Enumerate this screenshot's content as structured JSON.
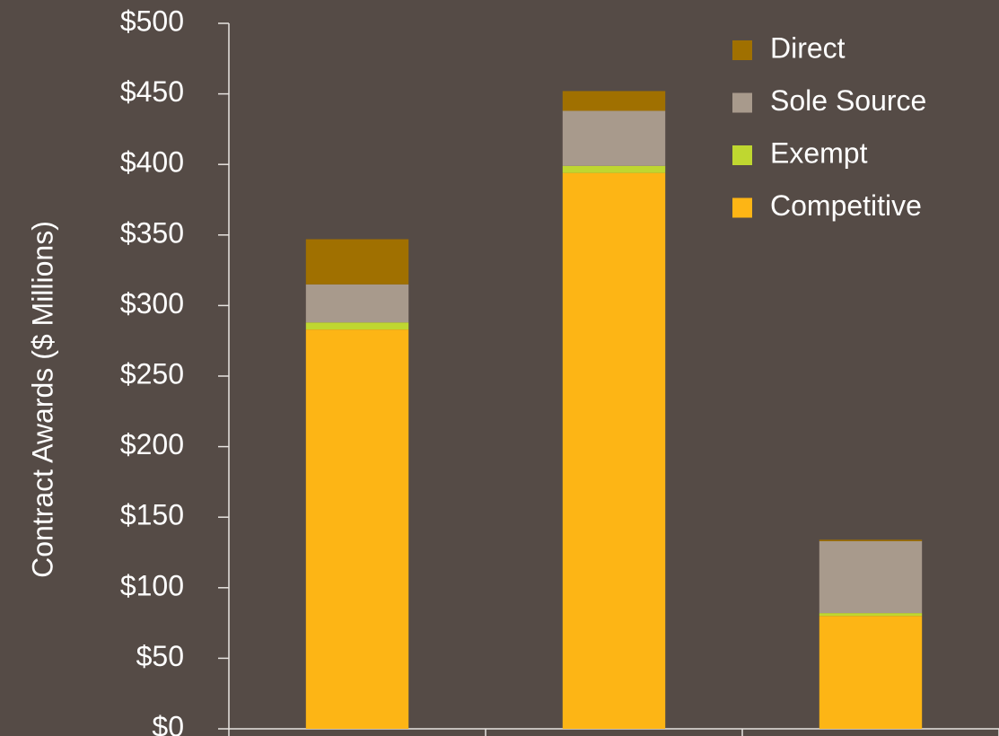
{
  "chart_data": {
    "type": "stacked_bar",
    "y_axis_label": "Contract Awards ($ Millions)",
    "categories": [
      null,
      null,
      null
    ],
    "series": [
      {
        "name": "Competitive",
        "color": "#fdb515",
        "values": [
          283,
          394,
          80
        ]
      },
      {
        "name": "Exempt",
        "color": "#bfd730",
        "values": [
          5,
          5,
          2
        ]
      },
      {
        "name": "Sole Source",
        "color": "#a89a8c",
        "values": [
          27,
          39,
          51
        ]
      },
      {
        "name": "Direct",
        "color": "#a07000",
        "values": [
          32,
          14,
          1
        ]
      }
    ],
    "ylim": [
      0,
      500
    ],
    "yticks": [
      {
        "value": 0,
        "label": "$0"
      },
      {
        "value": 50,
        "label": "$50"
      },
      {
        "value": 100,
        "label": "$100"
      },
      {
        "value": 150,
        "label": "$150"
      },
      {
        "value": 200,
        "label": "$200"
      },
      {
        "value": 250,
        "label": "$250"
      },
      {
        "value": 300,
        "label": "$300"
      },
      {
        "value": 350,
        "label": "$350"
      },
      {
        "value": 400,
        "label": "$400"
      },
      {
        "value": 450,
        "label": "$450"
      },
      {
        "value": 500,
        "label": "$500"
      }
    ],
    "grid": false,
    "legend": "upper right"
  }
}
